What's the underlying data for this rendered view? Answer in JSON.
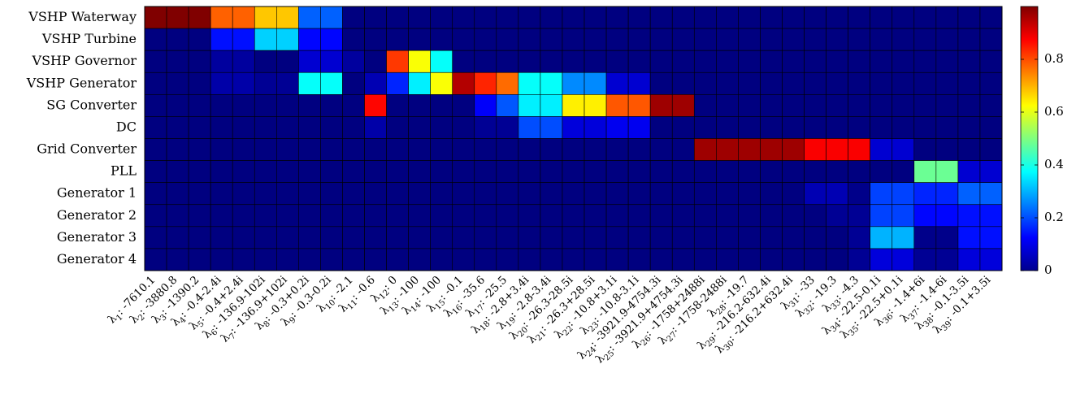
{
  "chart_data": {
    "type": "heatmap",
    "title": "",
    "colormap": "jet",
    "colorbar": {
      "range": [
        0,
        1
      ],
      "ticks": [
        "0",
        "0.2",
        "0.4",
        "0.6",
        "0.8"
      ]
    },
    "rows": [
      "VSHP Waterway",
      "VSHP Turbine",
      "VSHP Governor",
      "VSHP Generator",
      "SG Converter",
      "DC",
      "Grid Converter",
      "PLL",
      "Generator 1",
      "Generator 2",
      "Generator 3",
      "Generator 4"
    ],
    "columns": [
      "λ1: -7610.1",
      "λ2: -3880.8",
      "λ3: -1390.2",
      "λ4: -0.4-2.4i",
      "λ5: -0.4+2.4i",
      "λ6: -136.9-102i",
      "λ7: -136.9+102i",
      "λ8: -0.3+0.2i",
      "λ9: -0.3-0.2i",
      "λ10: -2.1",
      "λ11: -0.6",
      "λ12: 0",
      "λ13: -100",
      "λ14: -100",
      "λ15: -0.1",
      "λ16: -35.6",
      "λ17: -25.5",
      "λ18: -2.8+3.4i",
      "λ19: -2.8-3.4i",
      "λ20: -26.3-28.5i",
      "λ21: -26.3+28.5i",
      "λ22: -10.8+3.1i",
      "λ23: -10.8-3.1i",
      "λ24: -3921.9-4754.3i",
      "λ25: -3921.9+4754.3i",
      "λ26: -1758+2488i",
      "λ27: -1758-2488i",
      "λ28: -19.7",
      "λ29: -216.2-632.4i",
      "λ30: -216.2+632.4i",
      "λ31: -33",
      "λ32: -19.3",
      "λ33: -4.3",
      "λ34: -22.5-0.1i",
      "λ35: -22.5+0.1i",
      "λ36: -1.4+6i",
      "λ37: -1.4-6i",
      "λ38: -0.1-3.5i",
      "λ39: -0.1+3.5i"
    ],
    "values": [
      [
        1,
        1,
        1,
        0.78,
        0.78,
        0.68,
        0.68,
        0.22,
        0.22,
        0,
        0,
        0,
        0,
        0,
        0,
        0,
        0,
        0,
        0,
        0,
        0,
        0,
        0,
        0,
        0,
        0,
        0,
        0,
        0,
        0,
        0,
        0,
        0,
        0,
        0,
        0,
        0,
        0,
        0
      ],
      [
        0,
        0,
        0,
        0.14,
        0.14,
        0.33,
        0.33,
        0.13,
        0.13,
        0,
        0,
        0,
        0,
        0,
        0,
        0,
        0,
        0,
        0,
        0,
        0,
        0,
        0,
        0,
        0,
        0,
        0,
        0,
        0,
        0,
        0,
        0,
        0,
        0,
        0,
        0,
        0,
        0,
        0
      ],
      [
        0,
        0,
        0,
        0.03,
        0.03,
        0,
        0,
        0.08,
        0.08,
        0.03,
        0,
        0.82,
        0.62,
        0.38,
        0,
        0,
        0,
        0,
        0,
        0,
        0,
        0,
        0,
        0,
        0,
        0,
        0,
        0,
        0,
        0,
        0,
        0,
        0,
        0,
        0,
        0,
        0,
        0,
        0
      ],
      [
        0,
        0,
        0,
        0.04,
        0.04,
        0.02,
        0.02,
        0.38,
        0.38,
        0,
        0.05,
        0.16,
        0.36,
        0.62,
        0.95,
        0.84,
        0.77,
        0.38,
        0.38,
        0.26,
        0.26,
        0.08,
        0.08,
        0,
        0,
        0,
        0,
        0,
        0,
        0,
        0,
        0,
        0,
        0,
        0,
        0,
        0,
        0,
        0
      ],
      [
        0,
        0,
        0,
        0,
        0,
        0,
        0,
        0,
        0,
        0,
        0.87,
        0,
        0,
        0,
        0,
        0.12,
        0.21,
        0.36,
        0.36,
        0.64,
        0.64,
        0.79,
        0.79,
        0.97,
        0.97,
        0,
        0,
        0,
        0,
        0,
        0,
        0,
        0,
        0,
        0,
        0,
        0,
        0,
        0
      ],
      [
        0,
        0,
        0,
        0,
        0,
        0,
        0,
        0,
        0,
        0,
        0.04,
        0,
        0,
        0,
        0,
        0.02,
        0.02,
        0.2,
        0.2,
        0.09,
        0.09,
        0.11,
        0.11,
        0,
        0,
        0,
        0,
        0,
        0,
        0,
        0,
        0,
        0,
        0,
        0,
        0,
        0,
        0,
        0
      ],
      [
        0,
        0,
        0,
        0,
        0,
        0,
        0,
        0,
        0,
        0,
        0,
        0,
        0,
        0,
        0,
        0,
        0,
        0,
        0,
        0,
        0,
        0,
        0,
        0,
        0,
        0.97,
        0.97,
        0.97,
        0.97,
        0.97,
        0.88,
        0.88,
        0.88,
        0.08,
        0.08,
        0,
        0,
        0,
        0
      ],
      [
        0,
        0,
        0,
        0,
        0,
        0,
        0,
        0,
        0,
        0,
        0,
        0,
        0,
        0,
        0,
        0,
        0,
        0,
        0,
        0,
        0,
        0,
        0,
        0,
        0,
        0,
        0,
        0,
        0,
        0,
        0,
        0,
        0,
        0,
        0,
        0.48,
        0.48,
        0.08,
        0.08
      ],
      [
        0,
        0,
        0,
        0,
        0,
        0,
        0,
        0,
        0,
        0,
        0,
        0,
        0,
        0,
        0,
        0,
        0,
        0,
        0,
        0,
        0,
        0,
        0,
        0,
        0,
        0,
        0,
        0,
        0,
        0,
        0.05,
        0.05,
        0.01,
        0.19,
        0.19,
        0.16,
        0.16,
        0.22,
        0.22
      ],
      [
        0,
        0,
        0,
        0,
        0,
        0,
        0,
        0,
        0,
        0,
        0,
        0,
        0,
        0,
        0,
        0,
        0,
        0,
        0,
        0,
        0,
        0,
        0,
        0,
        0,
        0,
        0,
        0,
        0,
        0,
        0,
        0.02,
        0.02,
        0.19,
        0.19,
        0.13,
        0.13,
        0.14,
        0.14
      ],
      [
        0,
        0,
        0,
        0,
        0,
        0,
        0,
        0,
        0,
        0,
        0,
        0,
        0,
        0,
        0,
        0,
        0,
        0,
        0,
        0,
        0,
        0,
        0,
        0,
        0,
        0,
        0,
        0,
        0,
        0,
        0,
        0,
        0.02,
        0.3,
        0.3,
        0.01,
        0.01,
        0.14,
        0.14
      ],
      [
        0,
        0,
        0,
        0,
        0,
        0,
        0,
        0,
        0,
        0,
        0,
        0,
        0,
        0,
        0,
        0,
        0,
        0,
        0,
        0,
        0,
        0,
        0,
        0,
        0,
        0,
        0,
        0,
        0,
        0,
        0,
        0,
        0.02,
        0.09,
        0.09,
        0.02,
        0.02,
        0.09,
        0.09
      ]
    ]
  }
}
